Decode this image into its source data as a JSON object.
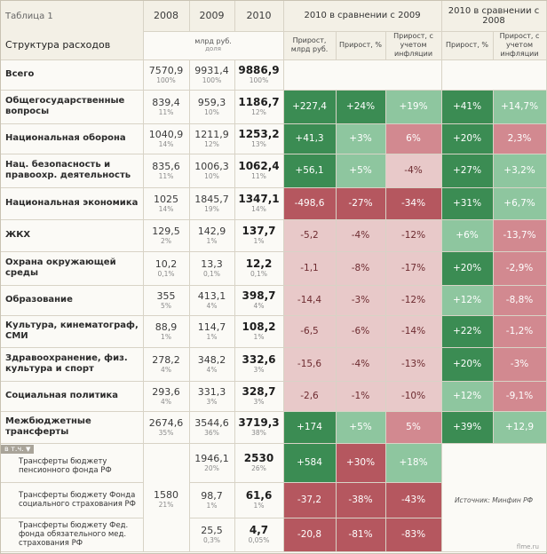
{
  "title": {
    "line1": "Таблица 1",
    "line2": "Структура расходов"
  },
  "units": {
    "main": "млрд руб.",
    "share": "доля"
  },
  "years": [
    "2008",
    "2009",
    "2010"
  ],
  "group1": {
    "title": "2010 в сравнении с 2009",
    "cols": [
      "Прирост, млрд руб.",
      "Прирост, %",
      "Прирост, с учетом инфляции"
    ]
  },
  "group2": {
    "title": "2010 в сравнении с 2008",
    "cols": [
      "Прирост, %",
      "Прирост, с учетом инфляции"
    ]
  },
  "colors": {
    "dark_green": "#3b8c53",
    "light_green": "#8ec69f",
    "dark_red": "#b5575f",
    "light_red": "#d28990",
    "pink": "#e8c9c9"
  },
  "rows": [
    {
      "label": "Всего",
      "v2008": "7570,9",
      "s2008": "100%",
      "v2009": "9931,4",
      "s2009": "100%",
      "v2010": "9886,9",
      "s2010": "100%"
    },
    {
      "label": "Общегосударственные вопросы",
      "v2008": "839,4",
      "s2008": "11%",
      "v2009": "959,3",
      "s2009": "10%",
      "v2010": "1186,7",
      "s2010": "12%",
      "g1": [
        "+227,4",
        "+24%",
        "+19%"
      ],
      "g2": [
        "+41%",
        "+14,7%"
      ]
    },
    {
      "label": "Национальная оборона",
      "v2008": "1040,9",
      "s2008": "14%",
      "v2009": "1211,9",
      "s2009": "12%",
      "v2010": "1253,2",
      "s2010": "13%",
      "g1": [
        "+41,3",
        "+3%",
        "6%"
      ],
      "g2": [
        "+20%",
        "2,3%"
      ]
    },
    {
      "label": "Нац. безопасность и правоохр. деятельность",
      "v2008": "835,6",
      "s2008": "11%",
      "v2009": "1006,3",
      "s2009": "10%",
      "v2010": "1062,4",
      "s2010": "11%",
      "g1": [
        "+56,1",
        "+5%",
        "-4%"
      ],
      "g2": [
        "+27%",
        "+3,2%"
      ]
    },
    {
      "label": "Национальная экономика",
      "v2008": "1025",
      "s2008": "14%",
      "v2009": "1845,7",
      "s2009": "19%",
      "v2010": "1347,1",
      "s2010": "14%",
      "g1": [
        "-498,6",
        "-27%",
        "-34%"
      ],
      "g2": [
        "+31%",
        "+6,7%"
      ]
    },
    {
      "label": "ЖКХ",
      "v2008": "129,5",
      "s2008": "2%",
      "v2009": "142,9",
      "s2009": "1%",
      "v2010": "137,7",
      "s2010": "1%",
      "g1": [
        "-5,2",
        "-4%",
        "-12%"
      ],
      "g2": [
        "+6%",
        "-13,7%"
      ]
    },
    {
      "label": "Охрана окружающей среды",
      "v2008": "10,2",
      "s2008": "0,1%",
      "v2009": "13,3",
      "s2009": "0,1%",
      "v2010": "12,2",
      "s2010": "0,1%",
      "g1": [
        "-1,1",
        "-8%",
        "-17%"
      ],
      "g2": [
        "+20%",
        "-2,9%"
      ]
    },
    {
      "label": "Образование",
      "v2008": "355",
      "s2008": "5%",
      "v2009": "413,1",
      "s2009": "4%",
      "v2010": "398,7",
      "s2010": "4%",
      "g1": [
        "-14,4",
        "-3%",
        "-12%"
      ],
      "g2": [
        "+12%",
        "-8,8%"
      ]
    },
    {
      "label": "Культура, кинематограф, СМИ",
      "v2008": "88,9",
      "s2008": "1%",
      "v2009": "114,7",
      "s2009": "1%",
      "v2010": "108,2",
      "s2010": "1%",
      "g1": [
        "-6,5",
        "-6%",
        "-14%"
      ],
      "g2": [
        "+22%",
        "-1,2%"
      ]
    },
    {
      "label": "Здравоохранение, физ. культура и спорт",
      "v2008": "278,2",
      "s2008": "4%",
      "v2009": "348,2",
      "s2009": "4%",
      "v2010": "332,6",
      "s2010": "3%",
      "g1": [
        "-15,6",
        "-4%",
        "-13%"
      ],
      "g2": [
        "+20%",
        "-3%"
      ]
    },
    {
      "label": "Социальная политика",
      "v2008": "293,6",
      "s2008": "4%",
      "v2009": "331,3",
      "s2009": "3%",
      "v2010": "328,7",
      "s2010": "3%",
      "g1": [
        "-2,6",
        "-1%",
        "-10%"
      ],
      "g2": [
        "+12%",
        "-9,1%"
      ]
    },
    {
      "label": "Межбюджетные трансферты",
      "v2008": "2674,6",
      "s2008": "35%",
      "v2009": "3544,6",
      "s2009": "36%",
      "v2010": "3719,3",
      "s2010": "38%",
      "g1": [
        "+174",
        "+5%",
        "5%"
      ],
      "g2": [
        "+39%",
        "+12,9"
      ]
    }
  ],
  "vtch": "в т.ч.",
  "sub_rows": [
    {
      "label": "Трансферты бюджету пенсионного фонда РФ",
      "v2009": "1946,1",
      "s2009": "20%",
      "v2010": "2530",
      "s2010": "26%",
      "g1": [
        "+584",
        "+30%",
        "+18%"
      ]
    },
    {
      "label": "Трансферты бюджету Фонда социального страхования РФ",
      "v2009": "98,7",
      "s2009": "1%",
      "v2010": "61,6",
      "s2010": "1%",
      "g1": [
        "-37,2",
        "-38%",
        "-43%"
      ]
    },
    {
      "label": "Трансферты бюджету Фед. фонда обязательного мед. страхования РФ",
      "v2009": "25,5",
      "s2009": "0,3%",
      "v2010": "4,7",
      "s2010": "0,05%",
      "g1": [
        "-20,8",
        "-81%",
        "-83%"
      ]
    }
  ],
  "merged2008": {
    "v": "1580",
    "s": "21%"
  },
  "source": "Источник: Минфин РФ",
  "credit": "flme.ru"
}
